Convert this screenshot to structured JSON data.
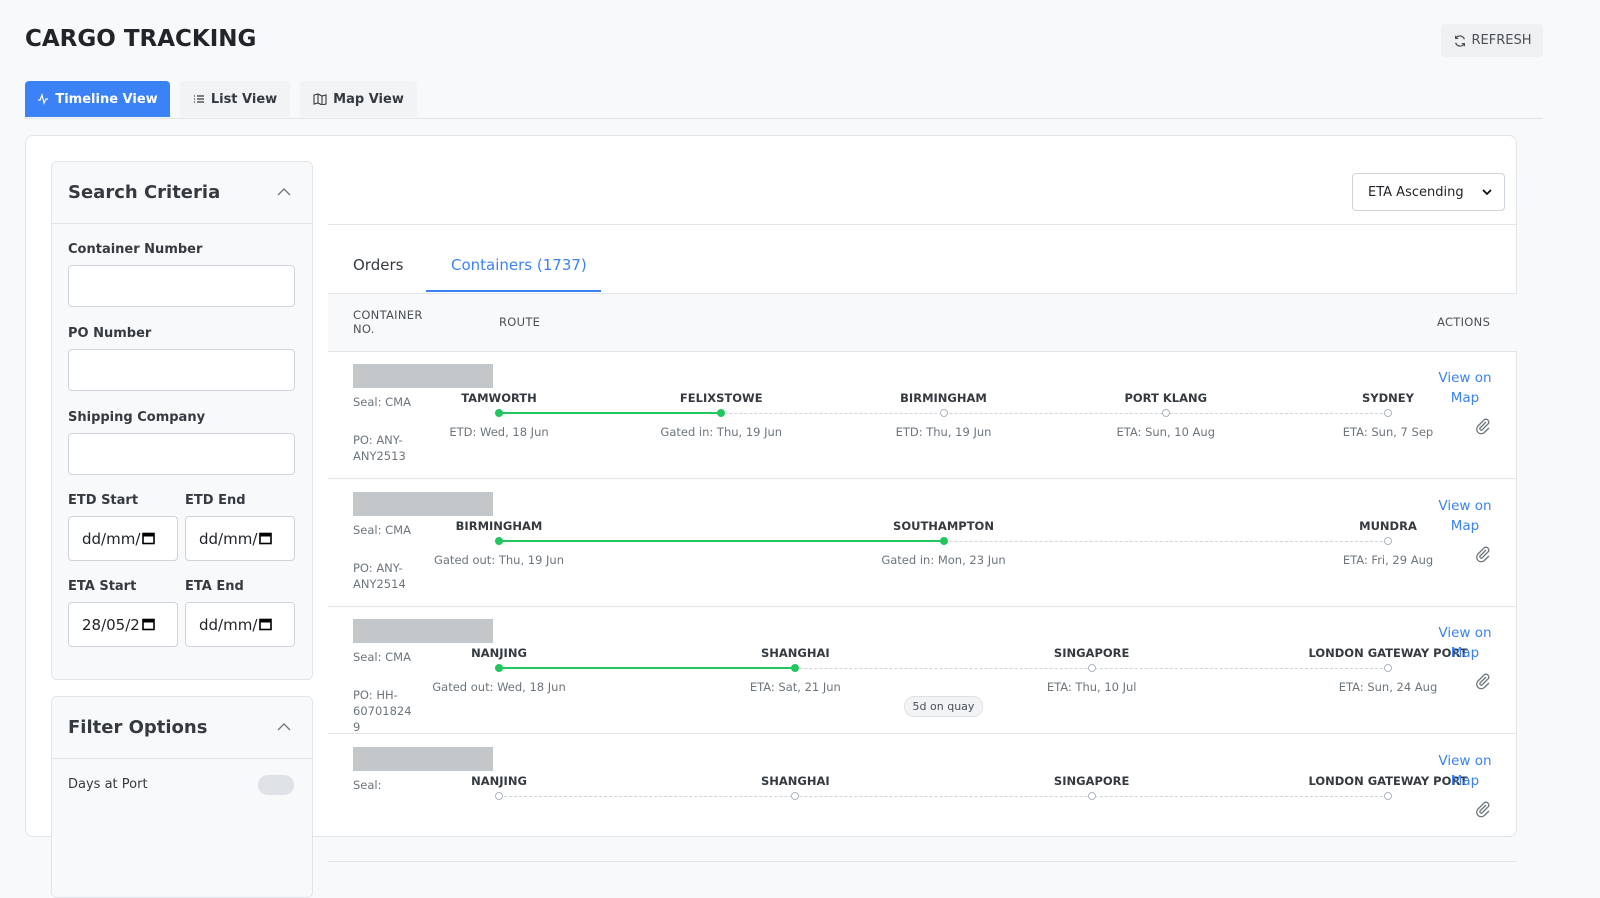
{
  "header": {
    "title": "CARGO TRACKING",
    "refresh": "REFRESH"
  },
  "view_tabs": [
    "Timeline View",
    "List View",
    "Map View"
  ],
  "search": {
    "title": "Search Criteria",
    "container_number": "Container Number",
    "po_number": "PO Number",
    "shipping_company": "Shipping Company",
    "etd_start": {
      "label": "ETD Start",
      "value": "dd/mm/"
    },
    "etd_end": {
      "label": "ETD End",
      "value": "dd/mm/"
    },
    "eta_start": {
      "label": "ETA Start",
      "value": "28/05/2"
    },
    "eta_end": {
      "label": "ETA End",
      "value": "dd/mm/"
    }
  },
  "filter": {
    "title": "Filter Options",
    "days_at_port": "Days at Port"
  },
  "sort": "ETA Ascending",
  "list_tabs": [
    "Orders",
    "Containers (1737)"
  ],
  "columns": [
    "CONTAINER NO.",
    "ROUTE",
    "ACTIONS"
  ],
  "rows": [
    {
      "seal": "Seal: CMA",
      "po": "PO: ANY-ANY2513",
      "action": "View on Map",
      "stops": [
        {
          "name": "TAMWORTH",
          "date": "ETD: Wed, 18 Jun",
          "done": true
        },
        {
          "name": "FELIXSTOWE",
          "date": "Gated in: Thu, 19 Jun",
          "done": true
        },
        {
          "name": "BIRMINGHAM",
          "date": "ETD: Thu, 19 Jun",
          "done": false
        },
        {
          "name": "PORT KLANG",
          "date": "ETA: Sun, 10 Aug",
          "done": false
        },
        {
          "name": "SYDNEY",
          "date": "ETA: Sun, 7 Sep",
          "done": false
        }
      ]
    },
    {
      "seal": "Seal: CMA",
      "po": "PO: ANY-ANY2514",
      "action": "View on Map",
      "stops": [
        {
          "name": "BIRMINGHAM",
          "date": "Gated out: Thu, 19 Jun",
          "done": true
        },
        {
          "name": "SOUTHAMPTON",
          "date": "Gated in: Mon, 23 Jun",
          "done": true
        },
        {
          "name": "MUNDRA",
          "date": "ETA: Fri, 29 Aug",
          "done": false
        }
      ]
    },
    {
      "seal": "Seal: CMA",
      "po": "PO: HH-607018249",
      "action": "View on Map",
      "badge": "5d on quay",
      "stops": [
        {
          "name": "NANJING",
          "date": "Gated out: Wed, 18 Jun",
          "done": true
        },
        {
          "name": "SHANGHAI",
          "date": "ETA: Sat, 21 Jun",
          "done": true
        },
        {
          "name": "SINGAPORE",
          "date": "ETA: Thu, 10 Jul",
          "done": false
        },
        {
          "name": "LONDON GATEWAY PORT",
          "date": "ETA: Sun, 24 Aug",
          "done": false
        }
      ]
    },
    {
      "seal": "Seal:",
      "action": "View on Map",
      "stops": [
        {
          "name": "NANJING",
          "done": false
        },
        {
          "name": "SHANGHAI",
          "done": false
        },
        {
          "name": "SINGAPORE",
          "done": false
        },
        {
          "name": "LONDON GATEWAY PORT",
          "done": false
        }
      ]
    }
  ]
}
